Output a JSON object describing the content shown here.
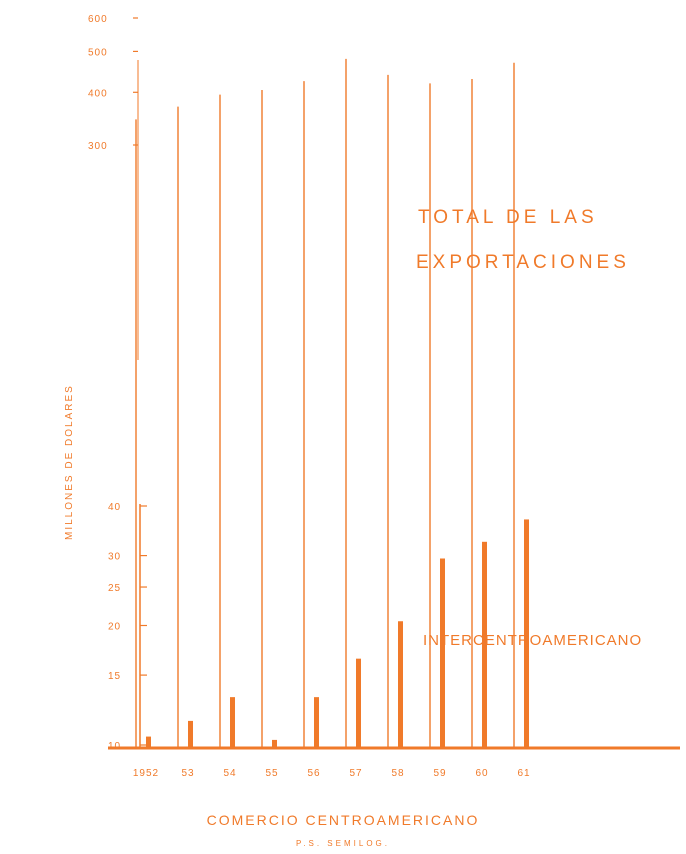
{
  "chart_data": {
    "type": "bar",
    "categories": [
      "1952",
      "53",
      "54",
      "55",
      "56",
      "57",
      "58",
      "59",
      "60",
      "61"
    ],
    "series": [
      {
        "name": "TOTAL DE LAS EXPORTACIONES",
        "label_lines": [
          "TOTAL DE LAS",
          "EXPORTACIONES"
        ],
        "values": [
          345,
          370,
          395,
          405,
          425,
          480,
          440,
          420,
          430,
          470
        ]
      },
      {
        "name": "INTERCENTROAMERICANO",
        "values": [
          10.5,
          11.5,
          13.2,
          10.3,
          13.2,
          16.5,
          20.5,
          29.5,
          32.5,
          37
        ]
      }
    ],
    "ylabel": "MILLONES DE DOLARES",
    "xlabel": "COMERCIO CENTROAMERICANO",
    "footnote": "P.S. SEMILOG.",
    "upper_ticks": [
      "600",
      "500",
      "400",
      "300"
    ],
    "lower_ticks": [
      "40",
      "30",
      "25",
      "20",
      "15",
      "10"
    ],
    "upper_tick_values": [
      600,
      500,
      400,
      300
    ],
    "lower_tick_values": [
      40,
      30,
      25,
      20,
      15,
      10
    ],
    "scale": "log",
    "color": "#f07a2a"
  }
}
